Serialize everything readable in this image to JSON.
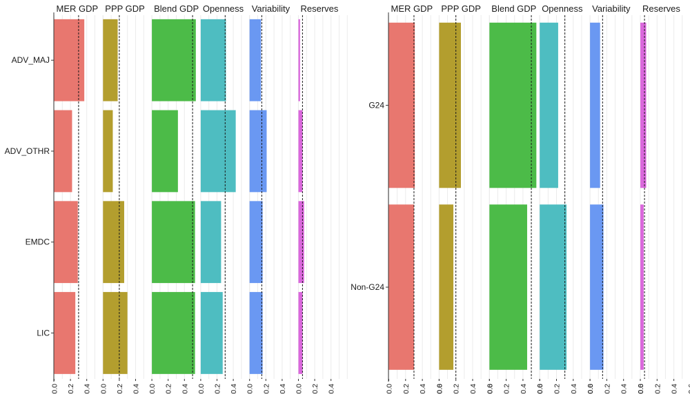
{
  "chart_data": [
    {
      "type": "bar",
      "orientation": "horizontal",
      "facets": [
        "MER GDP",
        "PPP GDP",
        "Blend GDP",
        "Openness",
        "Variability",
        "Reserves"
      ],
      "categories": [
        "ADV_MAJ",
        "ADV_OTHR",
        "EMDC",
        "LIC"
      ],
      "xlim": [
        0,
        0.6
      ],
      "xticks": [
        "0.0",
        "0.2",
        "0.4"
      ],
      "series": [
        {
          "facet": "MER GDP",
          "color": "#E8776F",
          "reference": 0.3,
          "values": [
            0.37,
            0.22,
            0.29,
            0.26
          ]
        },
        {
          "facet": "PPP GDP",
          "color": "#B39E2E",
          "reference": 0.2,
          "values": [
            0.18,
            0.12,
            0.26,
            0.3
          ]
        },
        {
          "facet": "Blend GDP",
          "color": "#4CBB48",
          "reference": 0.5,
          "values": [
            0.54,
            0.32,
            0.53,
            0.53
          ]
        },
        {
          "facet": "Openness",
          "color": "#4EBDC1",
          "reference": 0.3,
          "values": [
            0.31,
            0.43,
            0.25,
            0.27
          ]
        },
        {
          "facet": "Variability",
          "color": "#6A98F2",
          "reference": 0.15,
          "values": [
            0.14,
            0.21,
            0.16,
            0.16
          ]
        },
        {
          "facet": "Reserves",
          "color": "#DA68DC",
          "reference": 0.05,
          "values": [
            0.02,
            0.05,
            0.07,
            0.05
          ]
        }
      ]
    },
    {
      "type": "bar",
      "orientation": "horizontal",
      "facets": [
        "MER GDP",
        "PPP GDP",
        "Blend GDP",
        "Openness",
        "Variability",
        "Reserves"
      ],
      "categories": [
        "G24",
        "Non-G24"
      ],
      "xlim": [
        0,
        0.6
      ],
      "xticks": [
        "0.0",
        "0.2",
        "0.4",
        "0.6"
      ],
      "series": [
        {
          "facet": "MER GDP",
          "color": "#E8776F",
          "reference": 0.3,
          "values": [
            0.31,
            0.3
          ]
        },
        {
          "facet": "PPP GDP",
          "color": "#B39E2E",
          "reference": 0.2,
          "values": [
            0.26,
            0.17
          ]
        },
        {
          "facet": "Blend GDP",
          "color": "#4CBB48",
          "reference": 0.5,
          "values": [
            0.56,
            0.45
          ]
        },
        {
          "facet": "Openness",
          "color": "#4EBDC1",
          "reference": 0.3,
          "values": [
            0.22,
            0.32
          ]
        },
        {
          "facet": "Variability",
          "color": "#6A98F2",
          "reference": 0.15,
          "values": [
            0.12,
            0.16
          ]
        },
        {
          "facet": "Reserves",
          "color": "#DA68DC",
          "reference": 0.05,
          "values": [
            0.07,
            0.04
          ]
        }
      ]
    }
  ]
}
